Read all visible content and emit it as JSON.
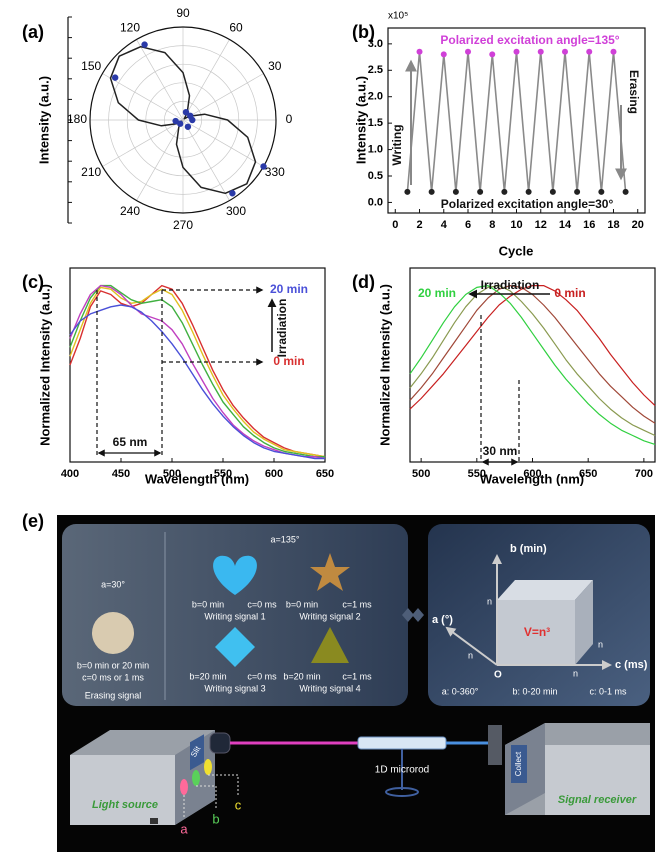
{
  "chart_data": [
    {
      "type": "polar",
      "label": "(a)",
      "ylabel": "Intensity (a.u.)",
      "rlim": [
        0,
        1
      ],
      "grid": true,
      "thetaticks": [
        0,
        30,
        60,
        90,
        120,
        150,
        180,
        210,
        240,
        270,
        300,
        330
      ],
      "series": [
        {
          "mode": "line",
          "color": "#222222",
          "theta": [
            0,
            15,
            30,
            45,
            60,
            75,
            90,
            105,
            120,
            135,
            150,
            165,
            180,
            195,
            210,
            225,
            240,
            255,
            270,
            285,
            300,
            315,
            330,
            345
          ],
          "values": [
            0.48,
            0.24,
            0.08,
            0.02,
            0.09,
            0.27,
            0.51,
            0.75,
            0.91,
            0.97,
            0.9,
            0.72,
            0.48,
            0.24,
            0.08,
            0.02,
            0.09,
            0.27,
            0.51,
            0.75,
            0.91,
            0.97,
            0.9,
            0.72
          ]
        },
        {
          "mode": "markers",
          "color": "#2a3aa8",
          "theta": [
            117,
            148,
            69,
            30,
            233,
            306,
            188,
            0,
            330,
            304
          ],
          "values": [
            0.91,
            0.86,
            0.09,
            0.09,
            0.05,
            0.09,
            0.08,
            0.1,
            1.0,
            0.95
          ]
        }
      ]
    },
    {
      "type": "line",
      "label": "(b)",
      "axis_multiplier": "x10⁵",
      "xlabel": "Cycle",
      "ylabel": "Intensity (a.u.)",
      "x": [
        1,
        2,
        3,
        4,
        5,
        6,
        7,
        8,
        9,
        10,
        11,
        12,
        13,
        14,
        15,
        16,
        17,
        18,
        19
      ],
      "series": [
        {
          "color": "#8a8a8a",
          "marker_colors": [
            "#222222",
            "#d040d8",
            "#222222",
            "#d040d8",
            "#222222",
            "#d040d8",
            "#222222",
            "#d040d8",
            "#222222",
            "#d040d8",
            "#222222",
            "#d040d8",
            "#222222",
            "#d040d8",
            "#222222",
            "#d040d8",
            "#222222",
            "#d040d8",
            "#222222"
          ],
          "values": [
            0.2,
            2.85,
            0.2,
            2.8,
            0.2,
            2.85,
            0.2,
            2.8,
            0.2,
            2.85,
            0.2,
            2.85,
            0.2,
            2.85,
            0.2,
            2.85,
            0.2,
            2.85,
            0.2
          ]
        }
      ],
      "xlim": [
        -0.6,
        20.6
      ],
      "ylim": [
        -0.2,
        3.3
      ],
      "xticks": [
        0,
        2,
        4,
        6,
        8,
        10,
        12,
        14,
        16,
        18,
        20
      ],
      "yticks": [
        {
          "value": 0,
          "label": "0.0"
        },
        0.5,
        {
          "value": 1,
          "label": "1.0"
        },
        1.5,
        {
          "value": 2,
          "label": "2.0"
        },
        2.5,
        {
          "value": 3,
          "label": "3.0"
        }
      ],
      "annotations": [
        {
          "text": "Polarized excitation angle=135°",
          "color": "#d040d8"
        },
        {
          "text": "Polarized excitation angle=30°",
          "color": "#111111"
        },
        {
          "text": "Writing",
          "color": "#111111"
        },
        {
          "text": "Erasing",
          "color": "#111111"
        }
      ]
    },
    {
      "type": "line",
      "label": "(c)",
      "xlabel": "Wavelength (nm)",
      "ylabel": "Normalized Intensity (a.u.)",
      "x": [
        400,
        410,
        420,
        430,
        440,
        450,
        460,
        470,
        480,
        490,
        500,
        510,
        520,
        530,
        540,
        550,
        560,
        570,
        580,
        590,
        600,
        610,
        620,
        630,
        640,
        650
      ],
      "series": [
        {
          "color": "#d83030",
          "values": [
            0.55,
            0.7,
            0.88,
            0.97,
            0.95,
            0.9,
            0.88,
            0.9,
            0.95,
            1.0,
            0.98,
            0.9,
            0.78,
            0.65,
            0.52,
            0.41,
            0.32,
            0.25,
            0.19,
            0.14,
            0.11,
            0.08,
            0.06,
            0.05,
            0.04,
            0.03
          ]
        },
        {
          "color": "#e0c020",
          "values": [
            0.6,
            0.75,
            0.9,
            0.99,
            0.98,
            0.93,
            0.9,
            0.91,
            0.95,
            0.98,
            0.95,
            0.86,
            0.74,
            0.61,
            0.49,
            0.38,
            0.3,
            0.23,
            0.17,
            0.13,
            0.1,
            0.07,
            0.06,
            0.05,
            0.04,
            0.03
          ]
        },
        {
          "color": "#40b040",
          "values": [
            0.65,
            0.8,
            0.93,
            1.0,
            1.0,
            0.96,
            0.92,
            0.9,
            0.91,
            0.92,
            0.88,
            0.79,
            0.67,
            0.55,
            0.44,
            0.34,
            0.27,
            0.2,
            0.15,
            0.11,
            0.08,
            0.06,
            0.05,
            0.04,
            0.03,
            0.03
          ]
        },
        {
          "color": "#c040c0",
          "values": [
            0.7,
            0.84,
            0.95,
            1.0,
            0.99,
            0.95,
            0.89,
            0.84,
            0.82,
            0.8,
            0.75,
            0.67,
            0.56,
            0.46,
            0.36,
            0.28,
            0.21,
            0.16,
            0.12,
            0.09,
            0.07,
            0.05,
            0.04,
            0.03,
            0.03,
            0.02
          ]
        },
        {
          "color": "#4a50d8",
          "values": [
            0.72,
            0.8,
            0.84,
            0.86,
            0.88,
            0.89,
            0.88,
            0.85,
            0.8,
            0.74,
            0.67,
            0.59,
            0.5,
            0.41,
            0.33,
            0.26,
            0.2,
            0.15,
            0.11,
            0.08,
            0.06,
            0.05,
            0.04,
            0.03,
            0.02,
            0.02
          ]
        }
      ],
      "xlim": [
        400,
        650
      ],
      "ylim": [
        0,
        1.1
      ],
      "xticks": [
        400,
        450,
        500,
        550,
        600,
        650
      ],
      "annotations": [
        {
          "text": "20 min",
          "color": "#4a50d8"
        },
        {
          "text": "0 min",
          "color": "#d83030"
        },
        {
          "text": "Irradiation",
          "color": "#111111"
        },
        {
          "text": "65 nm",
          "color": "#111111"
        }
      ]
    },
    {
      "type": "line",
      "label": "(d)",
      "xlabel": "Wavelength (nm)",
      "ylabel": "Normalized Intensity (a.u.)",
      "x": [
        490,
        500,
        510,
        520,
        530,
        540,
        550,
        560,
        570,
        580,
        590,
        600,
        610,
        620,
        630,
        640,
        650,
        660,
        670,
        680,
        690,
        700,
        710
      ],
      "series": [
        {
          "color": "#c82020",
          "values": [
            0.3,
            0.36,
            0.43,
            0.5,
            0.58,
            0.66,
            0.74,
            0.82,
            0.89,
            0.94,
            0.98,
            1.0,
            1.0,
            0.97,
            0.92,
            0.86,
            0.78,
            0.7,
            0.61,
            0.53,
            0.45,
            0.38,
            0.32
          ]
        },
        {
          "color": "#a04838",
          "values": [
            0.35,
            0.42,
            0.5,
            0.59,
            0.68,
            0.77,
            0.86,
            0.93,
            0.98,
            1.0,
            0.99,
            0.95,
            0.89,
            0.82,
            0.74,
            0.66,
            0.58,
            0.5,
            0.43,
            0.37,
            0.31,
            0.26,
            0.22
          ]
        },
        {
          "color": "#8a9a50",
          "values": [
            0.42,
            0.5,
            0.59,
            0.69,
            0.79,
            0.88,
            0.95,
            0.99,
            1.0,
            0.97,
            0.91,
            0.84,
            0.76,
            0.67,
            0.58,
            0.5,
            0.43,
            0.36,
            0.3,
            0.25,
            0.21,
            0.18,
            0.15
          ]
        },
        {
          "color": "#30d040",
          "values": [
            0.5,
            0.59,
            0.69,
            0.79,
            0.88,
            0.95,
            0.99,
            1.0,
            0.96,
            0.9,
            0.82,
            0.73,
            0.64,
            0.55,
            0.47,
            0.4,
            0.33,
            0.27,
            0.22,
            0.18,
            0.15,
            0.12,
            0.1
          ]
        }
      ],
      "xlim": [
        490,
        710
      ],
      "ylim": [
        0,
        1.1
      ],
      "xticks": [
        500,
        550,
        600,
        650,
        700
      ],
      "annotations": [
        {
          "text": "20 min",
          "color": "#30d040"
        },
        {
          "text": "Irradiation",
          "color": "#111111"
        },
        {
          "text": "0 min",
          "color": "#c82020"
        },
        {
          "text": "30 nm",
          "color": "#111111"
        }
      ]
    }
  ],
  "diagram": {
    "panel_label": "(e)",
    "erasing": {
      "angle": "a=30°",
      "params": [
        "b=0 min or 20 min",
        "c=0 ms  or  1 ms"
      ],
      "label": "Erasing signal"
    },
    "writing_angle": "a=135°",
    "signals": [
      {
        "b": "b=0 min",
        "c": "c=0 ms",
        "label": "Writing signal 1"
      },
      {
        "b": "b=0 min",
        "c": "c=1 ms",
        "label": "Writing signal 2"
      },
      {
        "b": "b=20 min",
        "c": "c=0 ms",
        "label": "Writing signal 3"
      },
      {
        "b": "b=20 min",
        "c": "c=1 ms",
        "label": "Writing signal 4"
      }
    ],
    "cube": {
      "b_axis": "b (min)",
      "a_axis": "a (°)",
      "c_axis": "c (ms)",
      "origin": "O",
      "n": [
        "n",
        "n",
        "n",
        "n"
      ],
      "volume": "V=n³",
      "ranges": [
        "a: 0-360°",
        "b: 0-20 min",
        "c: 0-1 ms"
      ]
    },
    "setup": {
      "source": "Light source",
      "slit": "Slit",
      "rod": "1D microrod",
      "collect": "Collect",
      "receiver": "Signal receiver",
      "filters": [
        "a",
        "b",
        "c"
      ]
    }
  }
}
